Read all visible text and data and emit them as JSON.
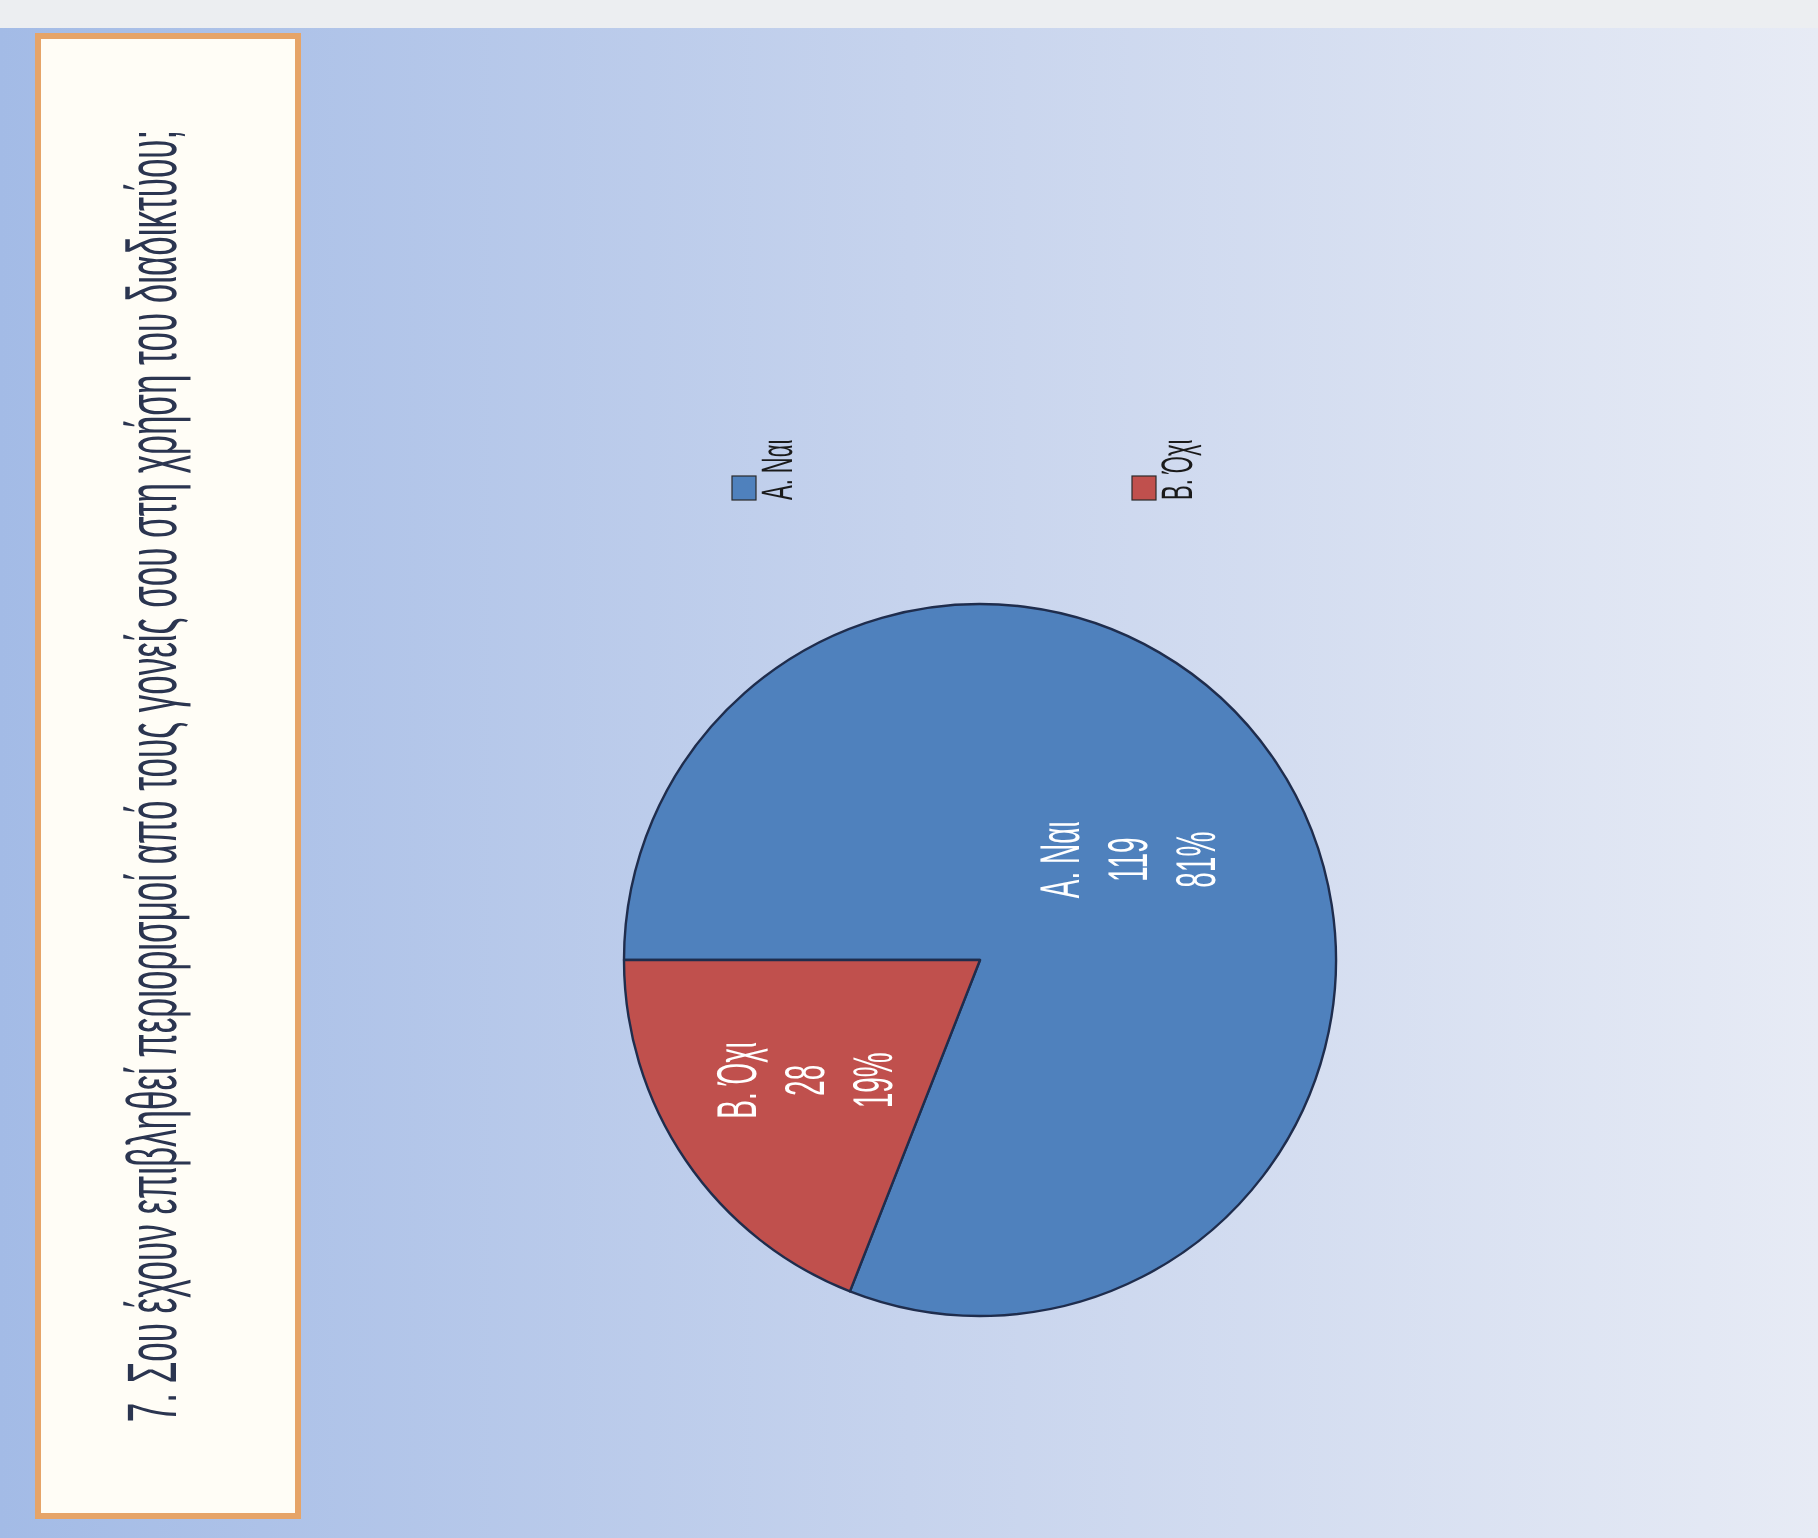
{
  "chart_data": {
    "type": "pie",
    "title": "7. Σου έχουν επιβληθεί περιορισμοί από τους γονείς σου στη χρήση του διαδικτύου;",
    "categories": [
      "A. Ναι",
      "B. Όχι"
    ],
    "values": [
      119,
      28
    ],
    "colors": [
      "#4f81bd",
      "#c0504d"
    ],
    "value_labels": [
      "119\n81%",
      "28\n19%"
    ],
    "legend": "top"
  }
}
